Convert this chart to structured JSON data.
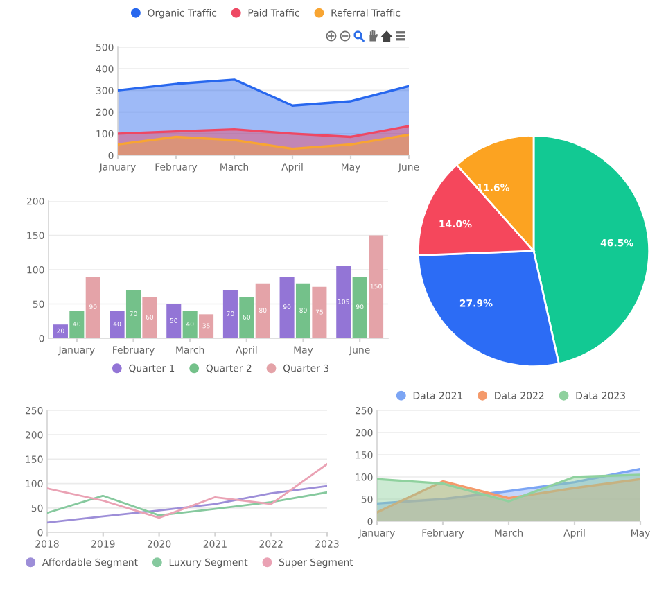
{
  "chart_data": [
    {
      "type": "area",
      "categories": [
        "January",
        "February",
        "March",
        "April",
        "May",
        "June"
      ],
      "series": [
        {
          "name": "Organic Traffic",
          "color": "#2767ee",
          "values": [
            300,
            330,
            350,
            230,
            250,
            320
          ]
        },
        {
          "name": "Paid Traffic",
          "color": "#ee4863",
          "values": [
            100,
            110,
            120,
            100,
            85,
            135
          ]
        },
        {
          "name": "Referral Traffic",
          "color": "#f8a532",
          "values": [
            50,
            85,
            70,
            30,
            50,
            95
          ]
        }
      ],
      "ylim": [
        0,
        500
      ],
      "yticks": [
        0,
        100,
        200,
        300,
        400,
        500
      ],
      "grid": "y",
      "legend": "top"
    },
    {
      "type": "pie",
      "categories": [
        null,
        null,
        null,
        null
      ],
      "values": [
        46.5,
        27.9,
        14.0,
        11.6
      ],
      "colors": [
        "#12c993",
        "#2c6cf5",
        "#f5475c",
        "#fca321"
      ],
      "value_labels": [
        "46.5%",
        "27.9%",
        "14.0%",
        "11.6%"
      ]
    },
    {
      "type": "bar",
      "categories": [
        "January",
        "February",
        "March",
        "April",
        "May",
        "June"
      ],
      "series": [
        {
          "name": "Quarter 1",
          "color": "#9375d6",
          "values": [
            20,
            40,
            50,
            70,
            90,
            105
          ]
        },
        {
          "name": "Quarter 2",
          "color": "#74c18a",
          "values": [
            40,
            70,
            40,
            60,
            80,
            90
          ]
        },
        {
          "name": "Quarter 3",
          "color": "#e4a3a8",
          "values": [
            90,
            60,
            35,
            80,
            75,
            150
          ]
        }
      ],
      "ylim": [
        0,
        200
      ],
      "yticks": [
        0,
        50,
        100,
        150,
        200
      ],
      "grid": "y",
      "legend": "bottom",
      "data_labels": true
    },
    {
      "type": "line",
      "x": [
        2018,
        2019,
        2020,
        2021,
        2022,
        2023
      ],
      "series": [
        {
          "name": "Affordable Segment",
          "color": "#9d8ed8",
          "values": [
            20,
            33,
            45,
            58,
            80,
            95
          ]
        },
        {
          "name": "Luxury Segment",
          "color": "#86c99e",
          "values": [
            40,
            75,
            35,
            48,
            62,
            82
          ]
        },
        {
          "name": "Super Segment",
          "color": "#eaa2b4",
          "values": [
            90,
            65,
            30,
            72,
            58,
            140
          ]
        }
      ],
      "xlim": [
        2018,
        2023
      ],
      "xticks": [
        2018,
        2019,
        2020,
        2021,
        2022,
        2023
      ],
      "ylim": [
        0,
        250
      ],
      "yticks": [
        0,
        50,
        100,
        150,
        200,
        250
      ],
      "grid": "y",
      "legend": "bottom"
    },
    {
      "type": "area",
      "categories": [
        "January",
        "February",
        "March",
        "April",
        "May"
      ],
      "series": [
        {
          "name": "Data 2021",
          "color": "#7ca5f4",
          "values": [
            40,
            50,
            68,
            88,
            118
          ]
        },
        {
          "name": "Data 2022",
          "color": "#f49a6b",
          "values": [
            20,
            90,
            52,
            75,
            95
          ]
        },
        {
          "name": "Data 2023",
          "color": "#8fd19e",
          "values": [
            95,
            85,
            45,
            100,
            105
          ]
        }
      ],
      "ylim": [
        0,
        250
      ],
      "yticks": [
        0,
        50,
        100,
        150,
        200,
        250
      ],
      "grid": "y",
      "legend": "top"
    }
  ]
}
